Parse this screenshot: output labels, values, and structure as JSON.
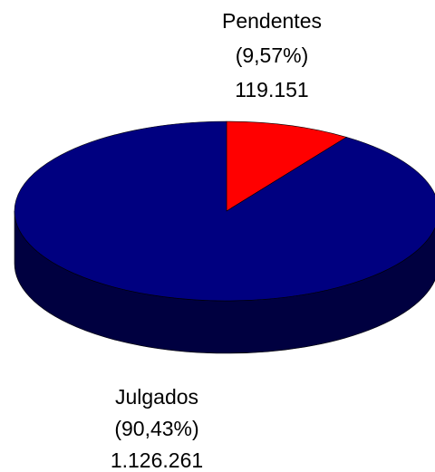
{
  "chart_data": {
    "type": "pie",
    "style": "3d",
    "title": "",
    "slices": [
      {
        "label": "Pendentes",
        "percent_label": "(9,57%)",
        "value_label": "119.151",
        "value": 119151,
        "percent": 9.57,
        "color": "#ff0000",
        "side_color": "#7f0000"
      },
      {
        "label": "Julgados",
        "percent_label": "(90,43%)",
        "value_label": "1.126.261",
        "value": 1126261,
        "percent": 90.43,
        "color": "#000080",
        "side_color": "#000040"
      }
    ]
  }
}
